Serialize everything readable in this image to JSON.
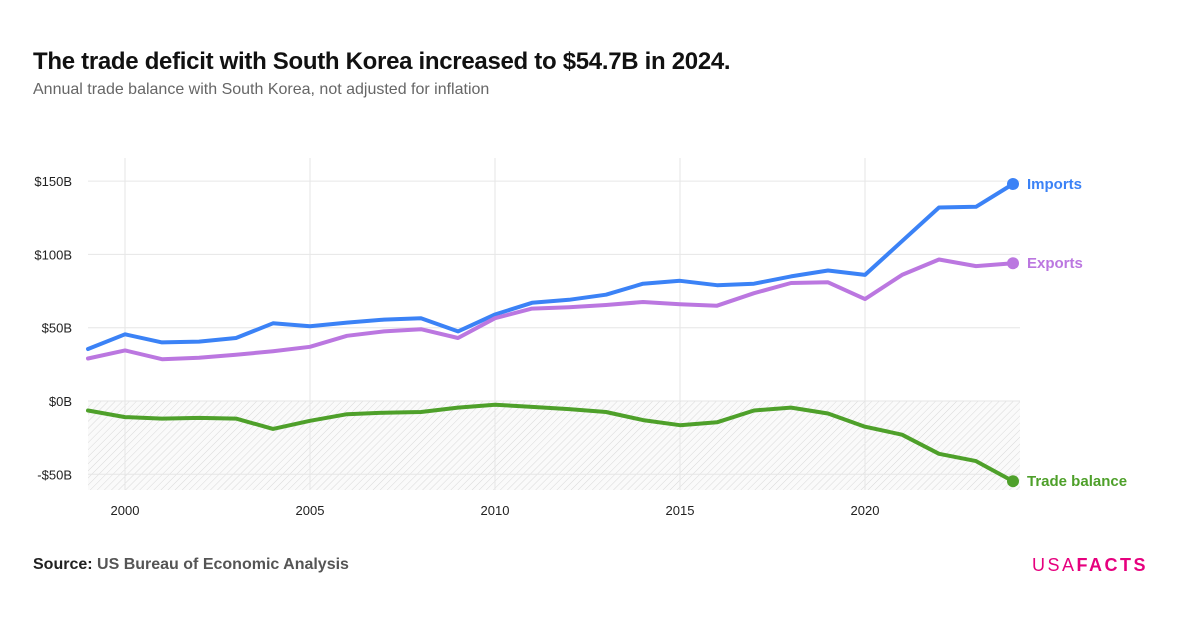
{
  "header": {
    "title": "The trade deficit with South Korea increased to $54.7B in 2024.",
    "subtitle": "Annual trade balance with South Korea, not adjusted for inflation"
  },
  "footer": {
    "source_label": "Source:",
    "source_name": "US Bureau of Economic Analysis",
    "logo_usa": "USA",
    "logo_facts": "FACTS"
  },
  "colors": {
    "imports": "#3b82f6",
    "exports": "#bb77e0",
    "balance": "#4ea02a",
    "grid": "#e6e6e6",
    "axis_text": "#222222"
  },
  "chart_data": {
    "type": "line",
    "title": "The trade deficit with South Korea increased to $54.7B in 2024.",
    "subtitle": "Annual trade balance with South Korea, not adjusted for inflation",
    "xlabel": "",
    "ylabel": "",
    "xlim": [
      1999,
      2024
    ],
    "ylim": [
      -60,
      165
    ],
    "x_ticks": [
      2000,
      2005,
      2010,
      2015,
      2020
    ],
    "y_ticks": [
      -50,
      0,
      50,
      100,
      150
    ],
    "y_tick_labels": [
      "-$50B",
      "$0B",
      "$50B",
      "$100B",
      "$150B"
    ],
    "grid": true,
    "legend": "end-of-line labels",
    "x": [
      1999,
      2000,
      2001,
      2002,
      2003,
      2004,
      2005,
      2006,
      2007,
      2008,
      2009,
      2010,
      2011,
      2012,
      2013,
      2014,
      2015,
      2016,
      2017,
      2018,
      2019,
      2020,
      2021,
      2022,
      2023,
      2024
    ],
    "series": [
      {
        "key": "imports",
        "name": "Imports",
        "values": [
          35.5,
          45.5,
          40.0,
          40.5,
          43.0,
          53.0,
          51.0,
          53.5,
          55.5,
          56.5,
          47.5,
          59.0,
          67.0,
          69.0,
          72.5,
          80.0,
          82.0,
          79.0,
          80.0,
          85.0,
          89.0,
          86.0,
          109.0,
          132.0,
          132.5,
          148.0
        ]
      },
      {
        "key": "exports",
        "name": "Exports",
        "values": [
          29.0,
          34.5,
          28.5,
          29.5,
          31.5,
          34.0,
          37.0,
          44.5,
          47.5,
          49.0,
          43.0,
          56.5,
          63.0,
          64.0,
          65.5,
          67.5,
          66.0,
          65.0,
          73.5,
          80.5,
          81.0,
          69.5,
          86.0,
          96.5,
          92.0,
          94.0
        ]
      },
      {
        "key": "balance",
        "name": "Trade balance",
        "values": [
          -6.5,
          -11.0,
          -12.0,
          -11.5,
          -12.0,
          -19.0,
          -13.5,
          -9.0,
          -8.0,
          -7.5,
          -4.5,
          -2.5,
          -4.0,
          -5.5,
          -7.5,
          -13.0,
          -16.5,
          -14.5,
          -6.5,
          -4.5,
          -8.5,
          -17.5,
          -23.0,
          -36.0,
          -41.0,
          -54.7
        ]
      }
    ]
  }
}
